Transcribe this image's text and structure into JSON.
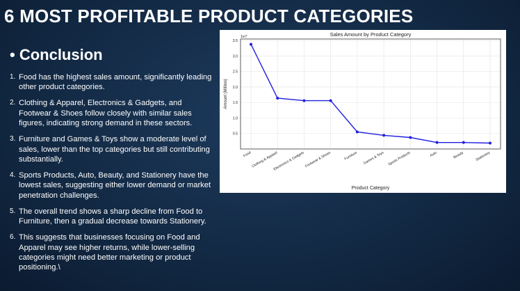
{
  "slide": {
    "title": "6 MOST PROFITABLE PRODUCT CATEGORIES",
    "section_heading": "• Conclusion"
  },
  "conclusions": [
    {
      "num": "1.",
      "text": "Food has the highest sales amount, significantly leading other product categories."
    },
    {
      "num": "2.",
      "text": "Clothing & Apparel, Electronics & Gadgets, and Footwear & Shoes follow closely with similar sales figures, indicating strong demand in these sectors."
    },
    {
      "num": "3.",
      "text": "Furniture and Games & Toys show a moderate level of sales, lower than the top categories but still contributing substantially."
    },
    {
      "num": "4.",
      "text": "Sports Products, Auto, Beauty, and Stationery have the lowest sales, suggesting either lower demand or market penetration challenges."
    },
    {
      "num": "5.",
      "text": "The overall trend shows a sharp decline from Food to Furniture, then a gradual decrease towards Stationery."
    },
    {
      "num": "6.",
      "text": "This suggests that businesses focusing on Food and Apparel may see higher returns, while lower-selling categories might need better marketing or product positioning.\\"
    }
  ],
  "chart_data": {
    "type": "line",
    "title": "Sales Amount by Product Category",
    "xlabel": "Product Category",
    "ylabel": "Amount (Million)",
    "scale_label": "1e7",
    "categories": [
      "Food",
      "Clothing & Apparel",
      "Electronics & Gadgets",
      "Footwear & Shoes",
      "Furniture",
      "Games & Toys",
      "Sports Products",
      "Auto",
      "Beauty",
      "Stationery"
    ],
    "series": [
      {
        "values": [
          3.38,
          1.64,
          1.56,
          1.56,
          0.55,
          0.44,
          0.37,
          0.21,
          0.21,
          0.19
        ]
      }
    ],
    "ylim": [
      0,
      3.55
    ],
    "yticks": [
      0.5,
      1.0,
      1.5,
      2.0,
      2.5,
      3.0,
      3.5
    ],
    "ytick_labels": [
      "0.5",
      "1.0",
      "1.5",
      "2.0",
      "2.5",
      "3.0",
      "3.5"
    ],
    "grid": true,
    "line_color": "#1f1fe0"
  }
}
